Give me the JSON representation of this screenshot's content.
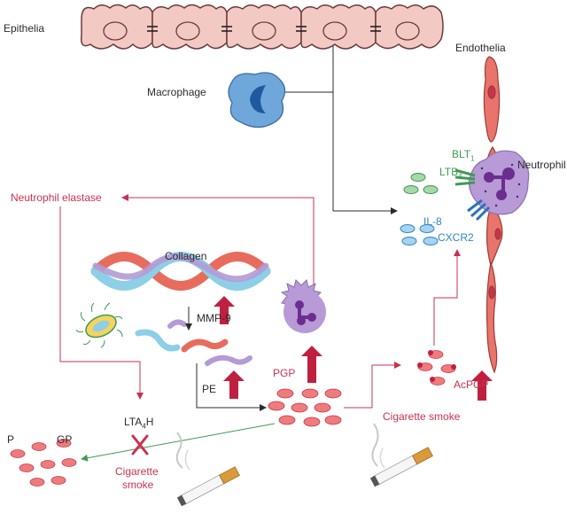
{
  "labels": {
    "epithelia": "Epithelia",
    "endothelia": "Endothelia",
    "macrophage": "Macrophage",
    "neutrophil": "Neutrophil",
    "neutrophil_elastase": "Neutrophil elastase",
    "collagen": "Collagen",
    "mmp9": "MMP-9",
    "pe": "PE",
    "pgp": "PGP",
    "acpgp": "AcPGP",
    "lta4h_main": "LTA",
    "lta4h_sub": "4",
    "lta4h_tail": "H",
    "p": "P",
    "gp": "GP",
    "cigarette_smoke_left_1": "Cigarette",
    "cigarette_smoke_left_2": "smoke",
    "cigarette_smoke_right": "Cigarette smoke",
    "ltb4_main": "LTB",
    "ltb4_sub": "4",
    "blt1_main": "BLT",
    "blt1_sub": "1",
    "il8": "IL-8",
    "cxcr2": "CXCR2"
  },
  "colors": {
    "text_dark": "#2b2b2b",
    "text_red": "#c8334f",
    "text_green": "#3f9a56",
    "text_blue": "#2d86c4",
    "epithelial_cell": "#f3c9c4",
    "endothelial_cell": "#e8746c",
    "macrophage": "#6fa7da",
    "neutrophil": "#b89ad6",
    "up_arrow": "#c0203f",
    "peptide": "#ee7c7c",
    "ltb4_oval": "#a7d7ab",
    "il8_oval": "#a8d3f0"
  }
}
